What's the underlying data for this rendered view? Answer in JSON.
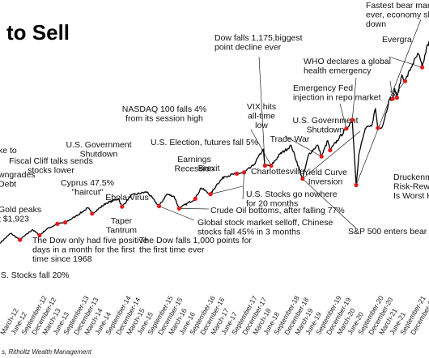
{
  "chart_data": {
    "type": "line",
    "title": "to Sell",
    "source": "s, Ritholtz Wealth Management",
    "series": [
      {
        "points": [
          [
            "2011-12-15",
            1225
          ],
          [
            "2012-03-15",
            1395
          ],
          [
            "2012-06-01",
            1280
          ],
          [
            "2012-09-15",
            1460
          ],
          [
            "2012-11-15",
            1360
          ],
          [
            "2013-01-15",
            1470
          ],
          [
            "2013-04-15",
            1560
          ],
          [
            "2013-06-20",
            1585
          ],
          [
            "2013-09-15",
            1690
          ],
          [
            "2013-12-31",
            1840
          ],
          [
            "2014-02-03",
            1740
          ],
          [
            "2014-06-01",
            1920
          ],
          [
            "2014-09-15",
            2000
          ],
          [
            "2014-10-15",
            1860
          ],
          [
            "2014-12-31",
            2060
          ],
          [
            "2015-05-15",
            2120
          ],
          [
            "2015-08-25",
            1870
          ],
          [
            "2015-10-30",
            2080
          ],
          [
            "2015-12-31",
            2040
          ],
          [
            "2016-02-11",
            1830
          ],
          [
            "2016-06-27",
            2000
          ],
          [
            "2016-08-15",
            2190
          ],
          [
            "2016-11-04",
            2080
          ],
          [
            "2016-12-31",
            2260
          ],
          [
            "2017-03-01",
            2390
          ],
          [
            "2017-06-15",
            2440
          ],
          [
            "2017-08-15",
            2460
          ],
          [
            "2017-11-01",
            2580
          ],
          [
            "2018-01-26",
            2870
          ],
          [
            "2018-02-08",
            2580
          ],
          [
            "2018-04-02",
            2580
          ],
          [
            "2018-06-15",
            2780
          ],
          [
            "2018-09-20",
            2930
          ],
          [
            "2018-12-24",
            2350
          ],
          [
            "2019-02-15",
            2780
          ],
          [
            "2019-05-01",
            2940
          ],
          [
            "2019-06-03",
            2740
          ],
          [
            "2019-07-26",
            3020
          ],
          [
            "2019-08-15",
            2850
          ],
          [
            "2019-11-01",
            3070
          ],
          [
            "2019-12-31",
            3230
          ],
          [
            "2020-02-19",
            3380
          ],
          [
            "2020-03-23",
            2240
          ],
          [
            "2020-04-15",
            2780
          ],
          [
            "2020-06-08",
            3230
          ],
          [
            "2020-07-31",
            3270
          ],
          [
            "2020-09-02",
            3580
          ],
          [
            "2020-09-23",
            3240
          ],
          [
            "2020-11-01",
            3270
          ],
          [
            "2020-12-31",
            3750
          ],
          [
            "2021-01-27",
            3750
          ],
          [
            "2021-02-12",
            3930
          ],
          [
            "2021-03-04",
            3770
          ],
          [
            "2021-04-15",
            4170
          ],
          [
            "2021-05-12",
            4060
          ],
          [
            "2021-07-15",
            4360
          ],
          [
            "2021-09-02",
            4540
          ],
          [
            "2021-10-04",
            4300
          ],
          [
            "2021-11-18",
            4700
          ],
          [
            "2022-01-04",
            4800
          ]
        ]
      }
    ],
    "markers": [
      "2012-06-01",
      "2012-11-15",
      "2013-04-15",
      "2013-06-20",
      "2014-02-03",
      "2014-10-15",
      "2015-08-25",
      "2016-02-11",
      "2016-06-27",
      "2016-11-04",
      "2017-06-15",
      "2017-08-15",
      "2018-02-08",
      "2018-04-02",
      "2018-12-24",
      "2019-06-03",
      "2019-08-15",
      "2019-12-31",
      "2020-02-19",
      "2020-03-23",
      "2020-09-23",
      "2021-01-27",
      "2021-03-04",
      "2021-05-12",
      "2021-10-04"
    ],
    "x_tick_labels": [
      "March-12",
      "June-12",
      "September-12",
      "December-12",
      "March-13",
      "June-13",
      "September-13",
      "December-13",
      "March-14",
      "June-14",
      "September-14",
      "December-14",
      "March-15",
      "June-15",
      "September-15",
      "December-15",
      "March-16",
      "June-16",
      "September-16",
      "December-16",
      "March-17",
      "June-17",
      "September-17",
      "December-17",
      "March-18",
      "June-18",
      "September-18",
      "December-18",
      "March-19",
      "June-19",
      "September-19",
      "December-19",
      "March-20",
      "June-20",
      "September-20",
      "December-20",
      "March-21",
      "June-21",
      "September-21",
      "December-21"
    ],
    "annotations": [
      {
        "text": [
          "Fastest bear marke",
          "ever, economy shut",
          "down"
        ],
        "anchor": "start"
      },
      {
        "text": [
          "Evergra"
        ],
        "anchor": "start"
      },
      {
        "text": [
          "Dow falls 1,175,biggest",
          "point decline ever"
        ],
        "anchor": "start"
      },
      {
        "text": [
          "WHO declares a global",
          "health emergency"
        ],
        "anchor": "start"
      },
      {
        "text": [
          "Emergency Fed",
          "injection in repo market"
        ],
        "anchor": "start"
      },
      {
        "text": [
          "NASDAQ 100 falls 4%",
          "from its  session high"
        ],
        "anchor": "middle"
      },
      {
        "text": [
          "VIX hits",
          "all-time",
          "low"
        ],
        "anchor": "middle"
      },
      {
        "text": [
          "U.S. Government",
          "Shutdown"
        ],
        "anchor": "middle"
      },
      {
        "text": [
          "Trade War"
        ],
        "anchor": "middle"
      },
      {
        "text": [
          "U.S. Election, futures fall 5%"
        ],
        "anchor": "start"
      },
      {
        "text": [
          "ke to"
        ],
        "anchor": "start"
      },
      {
        "text": [
          "Fiscal Cliff talks sends",
          "stocks lower"
        ],
        "anchor": "middle"
      },
      {
        "text": [
          "U.S. Government",
          "Shutdown"
        ],
        "anchor": "middle"
      },
      {
        "text": [
          "Earnings",
          "Recession"
        ],
        "anchor": "middle"
      },
      {
        "text": [
          "Brexit"
        ],
        "anchor": "middle"
      },
      {
        "text": [
          "Charlottesville"
        ],
        "anchor": "middle"
      },
      {
        "text": [
          "Yield Curve",
          "Inversion"
        ],
        "anchor": "middle"
      },
      {
        "text": [
          "Druckenmil",
          "Risk-Reward",
          "Is Worst He"
        ],
        "anchor": "start"
      },
      {
        "text": [
          "wngrades",
          "Debt"
        ],
        "anchor": "start"
      },
      {
        "text": [
          "Cyprus 47.5%",
          "\"haircut\""
        ],
        "anchor": "middle"
      },
      {
        "text": [
          "Ebola Virus"
        ],
        "anchor": "middle"
      },
      {
        "text": [
          "U.S. Stocks go nowhere",
          "for 20 months"
        ],
        "anchor": "start"
      },
      {
        "text": [
          "Crude Oil bottoms, after falling 77%"
        ],
        "anchor": "start"
      },
      {
        "text": [
          "Gold peaks",
          "t $1,923"
        ],
        "anchor": "start"
      },
      {
        "text": [
          "Taper",
          "Tantrum"
        ],
        "anchor": "middle"
      },
      {
        "text": [
          "Global stock market selloff, Chinese",
          "stocks fall 45% in 3 months"
        ],
        "anchor": "start"
      },
      {
        "text": [
          "The Dow only had five positive",
          "days in a month for the first",
          "time since 1968"
        ],
        "anchor": "start"
      },
      {
        "text": [
          "The Dow falls 1,000 points for",
          "the first time ever"
        ],
        "anchor": "start"
      },
      {
        "text": [
          "S&P 500 enters bear m"
        ],
        "anchor": "start"
      },
      {
        "text": [
          ".S. Stocks fall 20%"
        ],
        "anchor": "start"
      }
    ]
  }
}
